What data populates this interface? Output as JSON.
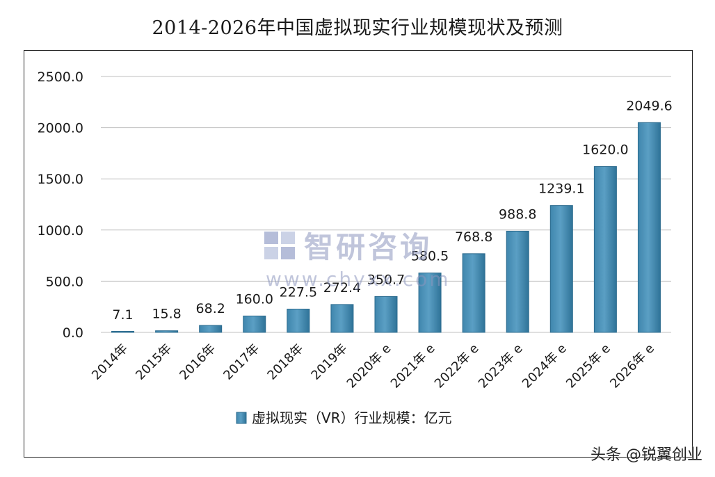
{
  "title": "2014-2026年中国虚拟现实行业规模现状及预测",
  "watermark": {
    "name": "智研咨询",
    "url": "www.chyxx.com"
  },
  "credit": "头条 @锐翼创业",
  "colors": {
    "bar_fill": "#5b9fc4",
    "bar_edge": "#2c6b8e",
    "grid": "#bfbfbf"
  },
  "chart_data": {
    "type": "bar",
    "title": "2014-2026年中国虚拟现实行业规模现状及预测",
    "categories": [
      "2014年",
      "2015年",
      "2016年",
      "2017年",
      "2018年",
      "2019年",
      "2020年 e",
      "2021年 e",
      "2022年 e",
      "2023年 e",
      "2024年 e",
      "2025年 e",
      "2026年 e"
    ],
    "series": [
      {
        "name": "虚拟现实（VR）行业规模：亿元",
        "values": [
          7.1,
          15.8,
          68.2,
          160.0,
          227.5,
          272.4,
          350.7,
          580.5,
          768.8,
          988.8,
          1239.1,
          1620.0,
          2049.6
        ],
        "labels": [
          "7.1",
          "15.8",
          "68.2",
          "160.0",
          "227.5",
          "272.4",
          "350.7",
          "580.5",
          "768.8",
          "988.8",
          "1239.1",
          "1620.0",
          "2049.6"
        ]
      }
    ],
    "yticks": [
      "0.0",
      "500.0",
      "1000.0",
      "1500.0",
      "2000.0",
      "2500.0"
    ],
    "ylim": [
      0,
      2500
    ],
    "xlabel": "",
    "ylabel": "",
    "grid": true,
    "legend_position": "bottom"
  }
}
